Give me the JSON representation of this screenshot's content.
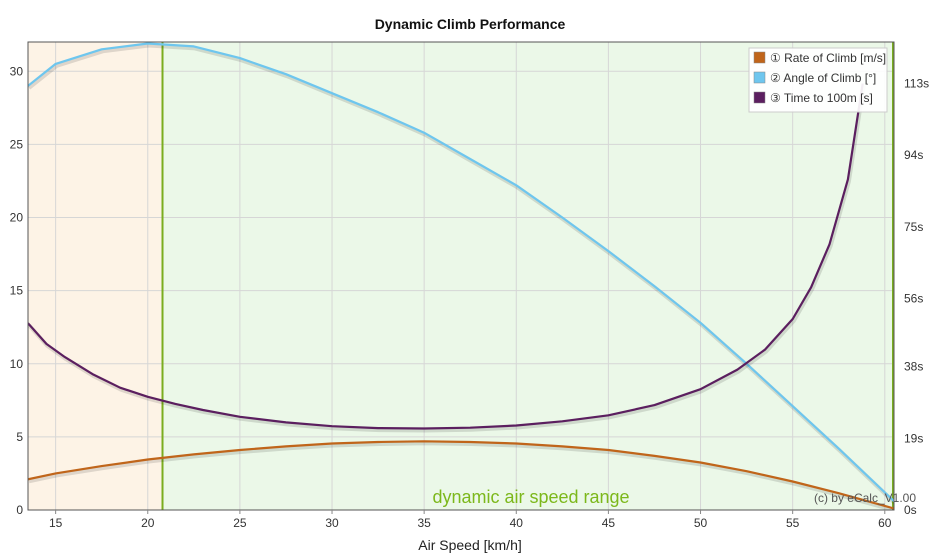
{
  "chart_data": {
    "type": "line",
    "title": "Dynamic Climb Performance",
    "xlabel": "Air Speed [km/h]",
    "ylabel": "",
    "xlim": [
      13.5,
      60.5
    ],
    "ylim": [
      0,
      32
    ],
    "y2lim": [
      0,
      124
    ],
    "x_ticks": [
      15,
      20,
      25,
      30,
      35,
      40,
      45,
      50,
      55,
      60
    ],
    "y_ticks": [
      0,
      5,
      10,
      15,
      20,
      25,
      30
    ],
    "y2_ticks": [
      {
        "value": 0,
        "label": "0s"
      },
      {
        "value": 19,
        "label": "19s"
      },
      {
        "value": 38,
        "label": "38s"
      },
      {
        "value": 56,
        "label": "56s"
      },
      {
        "value": 75,
        "label": "75s"
      },
      {
        "value": 94,
        "label": "94s"
      },
      {
        "value": 113,
        "label": "113s"
      }
    ],
    "grid": true,
    "legend_position": "top-right",
    "series": [
      {
        "name": "① Rate of Climb [m/s]",
        "color": "#c0651a",
        "axis": "left",
        "x": [
          13.5,
          15,
          17.5,
          20,
          22.5,
          25,
          27.5,
          30,
          32.5,
          35,
          37.5,
          40,
          42.5,
          45,
          47.5,
          50,
          52.5,
          55,
          57.5,
          60.5
        ],
        "values": [
          2.1,
          2.5,
          3.0,
          3.45,
          3.8,
          4.1,
          4.35,
          4.55,
          4.65,
          4.7,
          4.65,
          4.55,
          4.35,
          4.1,
          3.7,
          3.25,
          2.65,
          1.95,
          1.15,
          0.1
        ]
      },
      {
        "name": "② Angle of Climb [°]",
        "color": "#6ec6ee",
        "axis": "left",
        "x": [
          13.5,
          15,
          17.5,
          20,
          22.5,
          25,
          27.5,
          30,
          32.5,
          35,
          37.5,
          40,
          42.5,
          45,
          47.5,
          50,
          52.5,
          55,
          57.5,
          60.5
        ],
        "values": [
          29.0,
          30.5,
          31.5,
          31.9,
          31.7,
          30.9,
          29.8,
          28.5,
          27.2,
          25.8,
          24.0,
          22.2,
          20.0,
          17.7,
          15.3,
          12.8,
          10.0,
          7.1,
          4.2,
          0.6
        ]
      },
      {
        "name": "③ Time to 100m [s]",
        "color": "#5b1f5f",
        "axis": "right",
        "x": [
          13.5,
          14.5,
          15.5,
          17,
          18.5,
          20,
          21.5,
          23,
          25,
          27.5,
          30,
          32.5,
          35,
          37.5,
          40,
          42.5,
          45,
          47.5,
          50,
          52,
          53.5,
          55,
          56,
          57,
          58,
          58.8
        ],
        "values": [
          49.5,
          44.0,
          40.5,
          36.0,
          32.4,
          30.0,
          28.1,
          26.5,
          24.7,
          23.2,
          22.2,
          21.7,
          21.6,
          21.8,
          22.4,
          23.5,
          25.1,
          27.8,
          32.0,
          37.2,
          42.5,
          50.6,
          59.0,
          70.4,
          87.6,
          113
        ]
      }
    ],
    "annotations": {
      "range_label": "dynamic air speed range",
      "range_start": 20.8,
      "range_end": 60.5,
      "credit": "(c) by eCalc_V1.00"
    }
  },
  "colors": {
    "low_speed_zone": "#fdf3e6",
    "range_zone": "#ebf8e8",
    "range_marker": "#7aad1f",
    "range_label": "#7cb81b",
    "grid": "#d6d6d6",
    "frame": "#555555"
  }
}
